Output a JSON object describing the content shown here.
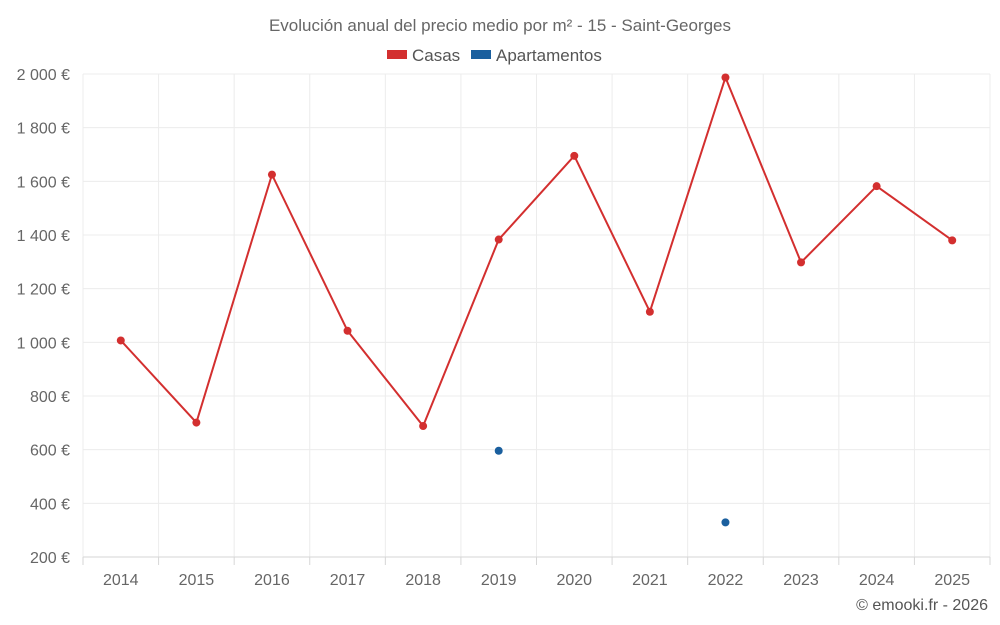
{
  "chart_data": {
    "type": "line",
    "title": "Evolución anual del precio medio por m² - 15 - Saint-Georges",
    "categories": [
      "2014",
      "2015",
      "2016",
      "2017",
      "2018",
      "2019",
      "2020",
      "2021",
      "2022",
      "2023",
      "2024",
      "2025"
    ],
    "series": [
      {
        "name": "Casas",
        "color": "#d32f2f",
        "values": [
          1007,
          701,
          1625,
          1043,
          688,
          1383,
          1695,
          1114,
          1987,
          1298,
          1582,
          1380
        ]
      },
      {
        "name": "Apartamentos",
        "color": "#1a5f9e",
        "values": [
          null,
          null,
          null,
          null,
          null,
          596,
          null,
          null,
          329,
          null,
          null,
          null
        ]
      }
    ],
    "ylim": [
      200,
      2000
    ],
    "yticks": [
      200,
      400,
      600,
      800,
      1000,
      1200,
      1400,
      1600,
      1800,
      2000
    ],
    "ytick_labels": [
      "200 €",
      "400 €",
      "600 €",
      "800 €",
      "1 000 €",
      "1 200 €",
      "1 400 €",
      "1 600 €",
      "1 800 €",
      "2 000 €"
    ],
    "xlabel": "",
    "ylabel": "",
    "grid": true,
    "legend_position": "top-center"
  },
  "credit": "© emooki.fr - 2026"
}
